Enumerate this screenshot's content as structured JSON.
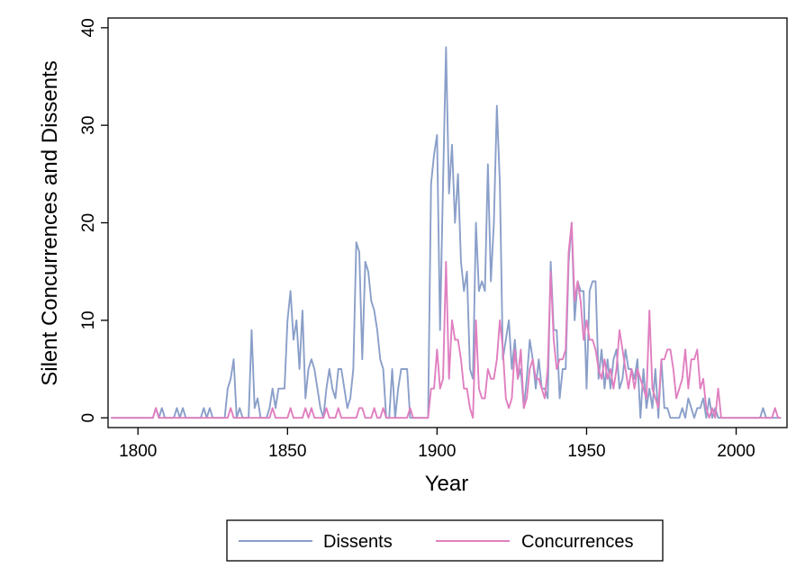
{
  "chart_data": {
    "type": "line",
    "xlabel": "Year",
    "ylabel": "Silent Concurrences and Dissents",
    "xlim": [
      1790,
      2017
    ],
    "ylim": [
      -1,
      41
    ],
    "x_ticks": [
      1800,
      1850,
      1900,
      1950,
      2000
    ],
    "y_ticks": [
      0,
      10,
      20,
      30,
      40
    ],
    "grid": false,
    "legend": "bottom",
    "series": [
      {
        "name": "Dissents",
        "color": "#8a9fc9",
        "points": [
          [
            1791,
            0
          ],
          [
            1805,
            0
          ],
          [
            1806,
            1
          ],
          [
            1807,
            0
          ],
          [
            1808,
            1
          ],
          [
            1809,
            0
          ],
          [
            1812,
            0
          ],
          [
            1813,
            1
          ],
          [
            1814,
            0
          ],
          [
            1815,
            1
          ],
          [
            1816,
            0
          ],
          [
            1821,
            0
          ],
          [
            1822,
            1
          ],
          [
            1823,
            0
          ],
          [
            1824,
            1
          ],
          [
            1825,
            0
          ],
          [
            1829,
            0
          ],
          [
            1830,
            3
          ],
          [
            1831,
            4
          ],
          [
            1832,
            6
          ],
          [
            1833,
            0
          ],
          [
            1834,
            1
          ],
          [
            1835,
            0
          ],
          [
            1836,
            0
          ],
          [
            1837,
            0
          ],
          [
            1838,
            9
          ],
          [
            1839,
            1
          ],
          [
            1840,
            2
          ],
          [
            1841,
            0
          ],
          [
            1843,
            0
          ],
          [
            1844,
            1
          ],
          [
            1845,
            3
          ],
          [
            1846,
            1
          ],
          [
            1847,
            3
          ],
          [
            1848,
            3
          ],
          [
            1849,
            3
          ],
          [
            1850,
            10
          ],
          [
            1851,
            13
          ],
          [
            1852,
            8
          ],
          [
            1853,
            10
          ],
          [
            1854,
            5
          ],
          [
            1855,
            11
          ],
          [
            1856,
            2
          ],
          [
            1857,
            5
          ],
          [
            1858,
            6
          ],
          [
            1859,
            5
          ],
          [
            1860,
            3
          ],
          [
            1861,
            1
          ],
          [
            1862,
            0
          ],
          [
            1863,
            3
          ],
          [
            1864,
            5
          ],
          [
            1865,
            3
          ],
          [
            1866,
            2
          ],
          [
            1867,
            5
          ],
          [
            1868,
            5
          ],
          [
            1869,
            3
          ],
          [
            1870,
            1
          ],
          [
            1871,
            2
          ],
          [
            1872,
            5
          ],
          [
            1873,
            18
          ],
          [
            1874,
            17
          ],
          [
            1875,
            6
          ],
          [
            1876,
            16
          ],
          [
            1877,
            15
          ],
          [
            1878,
            12
          ],
          [
            1879,
            11
          ],
          [
            1880,
            9
          ],
          [
            1881,
            6
          ],
          [
            1882,
            5
          ],
          [
            1883,
            0
          ],
          [
            1884,
            0
          ],
          [
            1885,
            5
          ],
          [
            1886,
            0
          ],
          [
            1887,
            3
          ],
          [
            1888,
            5
          ],
          [
            1889,
            5
          ],
          [
            1890,
            5
          ],
          [
            1891,
            0
          ],
          [
            1896,
            0
          ],
          [
            1897,
            0
          ],
          [
            1898,
            24
          ],
          [
            1899,
            27
          ],
          [
            1900,
            29
          ],
          [
            1901,
            9
          ],
          [
            1902,
            24
          ],
          [
            1903,
            38
          ],
          [
            1904,
            23
          ],
          [
            1905,
            28
          ],
          [
            1906,
            20
          ],
          [
            1907,
            25
          ],
          [
            1908,
            16
          ],
          [
            1909,
            13
          ],
          [
            1910,
            15
          ],
          [
            1911,
            5
          ],
          [
            1912,
            4
          ],
          [
            1913,
            20
          ],
          [
            1914,
            13
          ],
          [
            1915,
            14
          ],
          [
            1916,
            13
          ],
          [
            1917,
            26
          ],
          [
            1918,
            14
          ],
          [
            1919,
            20
          ],
          [
            1920,
            32
          ],
          [
            1921,
            24
          ],
          [
            1922,
            6
          ],
          [
            1923,
            8
          ],
          [
            1924,
            10
          ],
          [
            1925,
            5
          ],
          [
            1926,
            8
          ],
          [
            1927,
            4
          ],
          [
            1928,
            5
          ],
          [
            1929,
            1
          ],
          [
            1930,
            4
          ],
          [
            1931,
            8
          ],
          [
            1932,
            6
          ],
          [
            1933,
            3
          ],
          [
            1934,
            6
          ],
          [
            1935,
            3
          ],
          [
            1936,
            3
          ],
          [
            1937,
            2
          ],
          [
            1938,
            16
          ],
          [
            1939,
            9
          ],
          [
            1940,
            9
          ],
          [
            1941,
            2
          ],
          [
            1942,
            5
          ],
          [
            1943,
            5
          ],
          [
            1944,
            16
          ],
          [
            1945,
            20
          ],
          [
            1946,
            10
          ],
          [
            1947,
            14
          ],
          [
            1948,
            13
          ],
          [
            1949,
            13
          ],
          [
            1950,
            3
          ],
          [
            1951,
            13
          ],
          [
            1952,
            14
          ],
          [
            1953,
            14
          ],
          [
            1954,
            4
          ],
          [
            1955,
            7
          ],
          [
            1956,
            3
          ],
          [
            1957,
            6
          ],
          [
            1958,
            3
          ],
          [
            1959,
            6
          ],
          [
            1960,
            7
          ],
          [
            1961,
            3
          ],
          [
            1962,
            4
          ],
          [
            1963,
            7
          ],
          [
            1964,
            5
          ],
          [
            1965,
            5
          ],
          [
            1966,
            4
          ],
          [
            1967,
            6
          ],
          [
            1968,
            0
          ],
          [
            1969,
            5
          ],
          [
            1970,
            1
          ],
          [
            1971,
            3
          ],
          [
            1972,
            1
          ],
          [
            1973,
            5
          ],
          [
            1974,
            0
          ],
          [
            1975,
            6
          ],
          [
            1976,
            1
          ],
          [
            1977,
            1
          ],
          [
            1978,
            0
          ],
          [
            1980,
            0
          ],
          [
            1981,
            0
          ],
          [
            1982,
            1
          ],
          [
            1983,
            0
          ],
          [
            1984,
            2
          ],
          [
            1985,
            1
          ],
          [
            1986,
            0
          ],
          [
            1987,
            1
          ],
          [
            1988,
            1
          ],
          [
            1989,
            2
          ],
          [
            1990,
            0
          ],
          [
            1991,
            2
          ],
          [
            1992,
            0
          ],
          [
            1993,
            1
          ],
          [
            1994,
            0
          ],
          [
            2008,
            0
          ],
          [
            2009,
            1
          ],
          [
            2010,
            0
          ],
          [
            2015,
            0
          ]
        ]
      },
      {
        "name": "Concurrences",
        "color": "#e07fc0",
        "points": [
          [
            1791,
            0
          ],
          [
            1805,
            0
          ],
          [
            1806,
            1
          ],
          [
            1807,
            0
          ],
          [
            1830,
            0
          ],
          [
            1831,
            1
          ],
          [
            1832,
            0
          ],
          [
            1844,
            0
          ],
          [
            1845,
            1
          ],
          [
            1846,
            0
          ],
          [
            1850,
            0
          ],
          [
            1851,
            1
          ],
          [
            1852,
            0
          ],
          [
            1855,
            0
          ],
          [
            1856,
            1
          ],
          [
            1857,
            0
          ],
          [
            1858,
            1
          ],
          [
            1859,
            0
          ],
          [
            1862,
            0
          ],
          [
            1863,
            1
          ],
          [
            1864,
            0
          ],
          [
            1866,
            0
          ],
          [
            1867,
            1
          ],
          [
            1868,
            0
          ],
          [
            1873,
            0
          ],
          [
            1874,
            1
          ],
          [
            1875,
            1
          ],
          [
            1876,
            0
          ],
          [
            1878,
            0
          ],
          [
            1879,
            1
          ],
          [
            1880,
            0
          ],
          [
            1881,
            0
          ],
          [
            1882,
            1
          ],
          [
            1883,
            0
          ],
          [
            1890,
            0
          ],
          [
            1891,
            1
          ],
          [
            1892,
            0
          ],
          [
            1897,
            0
          ],
          [
            1898,
            3
          ],
          [
            1899,
            3
          ],
          [
            1900,
            7
          ],
          [
            1901,
            3
          ],
          [
            1902,
            4
          ],
          [
            1903,
            16
          ],
          [
            1904,
            4
          ],
          [
            1905,
            10
          ],
          [
            1906,
            8
          ],
          [
            1907,
            8
          ],
          [
            1908,
            6
          ],
          [
            1909,
            3
          ],
          [
            1910,
            3
          ],
          [
            1911,
            1
          ],
          [
            1912,
            0
          ],
          [
            1913,
            10
          ],
          [
            1914,
            3
          ],
          [
            1915,
            2
          ],
          [
            1916,
            2
          ],
          [
            1917,
            5
          ],
          [
            1918,
            4
          ],
          [
            1919,
            4
          ],
          [
            1920,
            6
          ],
          [
            1921,
            10
          ],
          [
            1922,
            7
          ],
          [
            1923,
            2
          ],
          [
            1924,
            1
          ],
          [
            1925,
            2
          ],
          [
            1926,
            7
          ],
          [
            1927,
            4
          ],
          [
            1928,
            7
          ],
          [
            1929,
            1
          ],
          [
            1930,
            2
          ],
          [
            1931,
            5
          ],
          [
            1932,
            6
          ],
          [
            1933,
            4
          ],
          [
            1934,
            4
          ],
          [
            1935,
            3
          ],
          [
            1936,
            2
          ],
          [
            1937,
            5
          ],
          [
            1938,
            15
          ],
          [
            1939,
            8
          ],
          [
            1940,
            5
          ],
          [
            1941,
            6
          ],
          [
            1942,
            6
          ],
          [
            1943,
            7
          ],
          [
            1944,
            17
          ],
          [
            1945,
            20
          ],
          [
            1946,
            12
          ],
          [
            1947,
            14
          ],
          [
            1948,
            12
          ],
          [
            1949,
            8
          ],
          [
            1950,
            10
          ],
          [
            1951,
            8
          ],
          [
            1952,
            8
          ],
          [
            1953,
            7
          ],
          [
            1954,
            5
          ],
          [
            1955,
            4
          ],
          [
            1956,
            6
          ],
          [
            1957,
            4
          ],
          [
            1958,
            5
          ],
          [
            1959,
            3
          ],
          [
            1960,
            5
          ],
          [
            1961,
            9
          ],
          [
            1962,
            7
          ],
          [
            1963,
            5
          ],
          [
            1964,
            3
          ],
          [
            1965,
            5
          ],
          [
            1966,
            3
          ],
          [
            1967,
            5
          ],
          [
            1968,
            4
          ],
          [
            1969,
            3
          ],
          [
            1970,
            2
          ],
          [
            1971,
            11
          ],
          [
            1972,
            3
          ],
          [
            1973,
            2
          ],
          [
            1974,
            1
          ],
          [
            1975,
            6
          ],
          [
            1976,
            6
          ],
          [
            1977,
            7
          ],
          [
            1978,
            7
          ],
          [
            1979,
            5
          ],
          [
            1980,
            2
          ],
          [
            1981,
            3
          ],
          [
            1982,
            4
          ],
          [
            1983,
            7
          ],
          [
            1984,
            3
          ],
          [
            1985,
            6
          ],
          [
            1986,
            6
          ],
          [
            1987,
            7
          ],
          [
            1988,
            3
          ],
          [
            1989,
            4
          ],
          [
            1990,
            1
          ],
          [
            1991,
            0
          ],
          [
            1992,
            1
          ],
          [
            1993,
            0
          ],
          [
            1994,
            3
          ],
          [
            1995,
            0
          ],
          [
            2012,
            0
          ],
          [
            2013,
            1
          ],
          [
            2014,
            0
          ],
          [
            2015,
            0
          ]
        ]
      }
    ]
  }
}
